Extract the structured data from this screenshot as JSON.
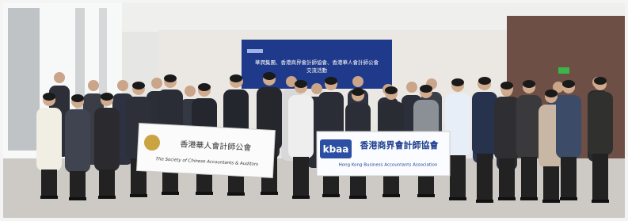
{
  "screen": {
    "line1": "華潤集團、香港商界會計師協會、香港華人會計師公會",
    "line2": "交流活動"
  },
  "banners": [
    {
      "chinese": "香港華人會計師公會",
      "english": "The Society of Chinese Accountants & Auditors"
    },
    {
      "logo": "kbaa",
      "chinese": "香港商界會計師協會",
      "english": "Hong Kong Business Accountants Association"
    }
  ]
}
